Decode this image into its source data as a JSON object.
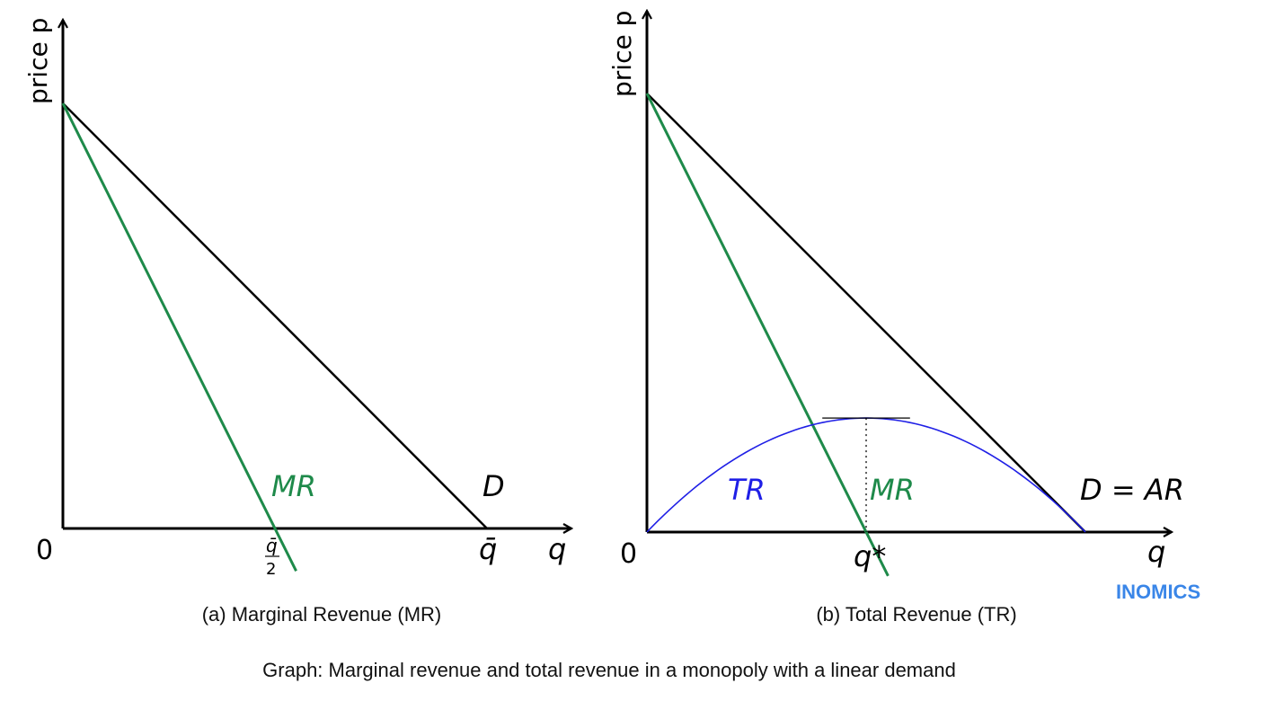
{
  "colors": {
    "axis": "#000000",
    "demand": "#000000",
    "mr": "#1e8a4a",
    "tr": "#1f1fe6",
    "logo": "#3a86e8"
  },
  "chart_data": [
    {
      "type": "line",
      "caption": "(a)  Marginal Revenue (MR)",
      "ylabel": "price p",
      "xlabel": "q",
      "origin_label": "0",
      "xlim": [
        0,
        1.2
      ],
      "ylim": [
        0,
        1.2
      ],
      "x_ticks": [
        {
          "label_num": "q̄",
          "label_den": "2",
          "x": 0.5
        },
        {
          "label": "q̄",
          "x": 1.0
        }
      ],
      "series": [
        {
          "name": "MR",
          "color": "#1e8a4a",
          "points": [
            [
              0,
              1
            ],
            [
              0.55,
              -0.1
            ]
          ]
        },
        {
          "name": "D",
          "color": "#000000",
          "points": [
            [
              0,
              1
            ],
            [
              1,
              0
            ]
          ]
        }
      ]
    },
    {
      "type": "line",
      "caption": "(b) Total Revenue (TR)",
      "ylabel": "price p",
      "xlabel": "q",
      "origin_label": "0",
      "xlim": [
        0,
        1.2
      ],
      "ylim": [
        0,
        1.2
      ],
      "x_ticks": [
        {
          "label": "q*",
          "x": 0.5
        }
      ],
      "series": [
        {
          "name": "TR",
          "color": "#1f1fe6",
          "curve": "parabola",
          "x_range": [
            0,
            1
          ],
          "peak": 0.26
        },
        {
          "name": "MR",
          "color": "#1e8a4a",
          "points": [
            [
              0,
              1
            ],
            [
              0.55,
              -0.1
            ]
          ]
        },
        {
          "name": "D = AR",
          "color": "#000000",
          "points": [
            [
              0,
              1
            ],
            [
              1,
              0
            ]
          ]
        }
      ]
    }
  ],
  "logo_text": "INOMICS",
  "figure_caption": "Graph: Marginal revenue and total revenue in a monopoly with a linear demand"
}
